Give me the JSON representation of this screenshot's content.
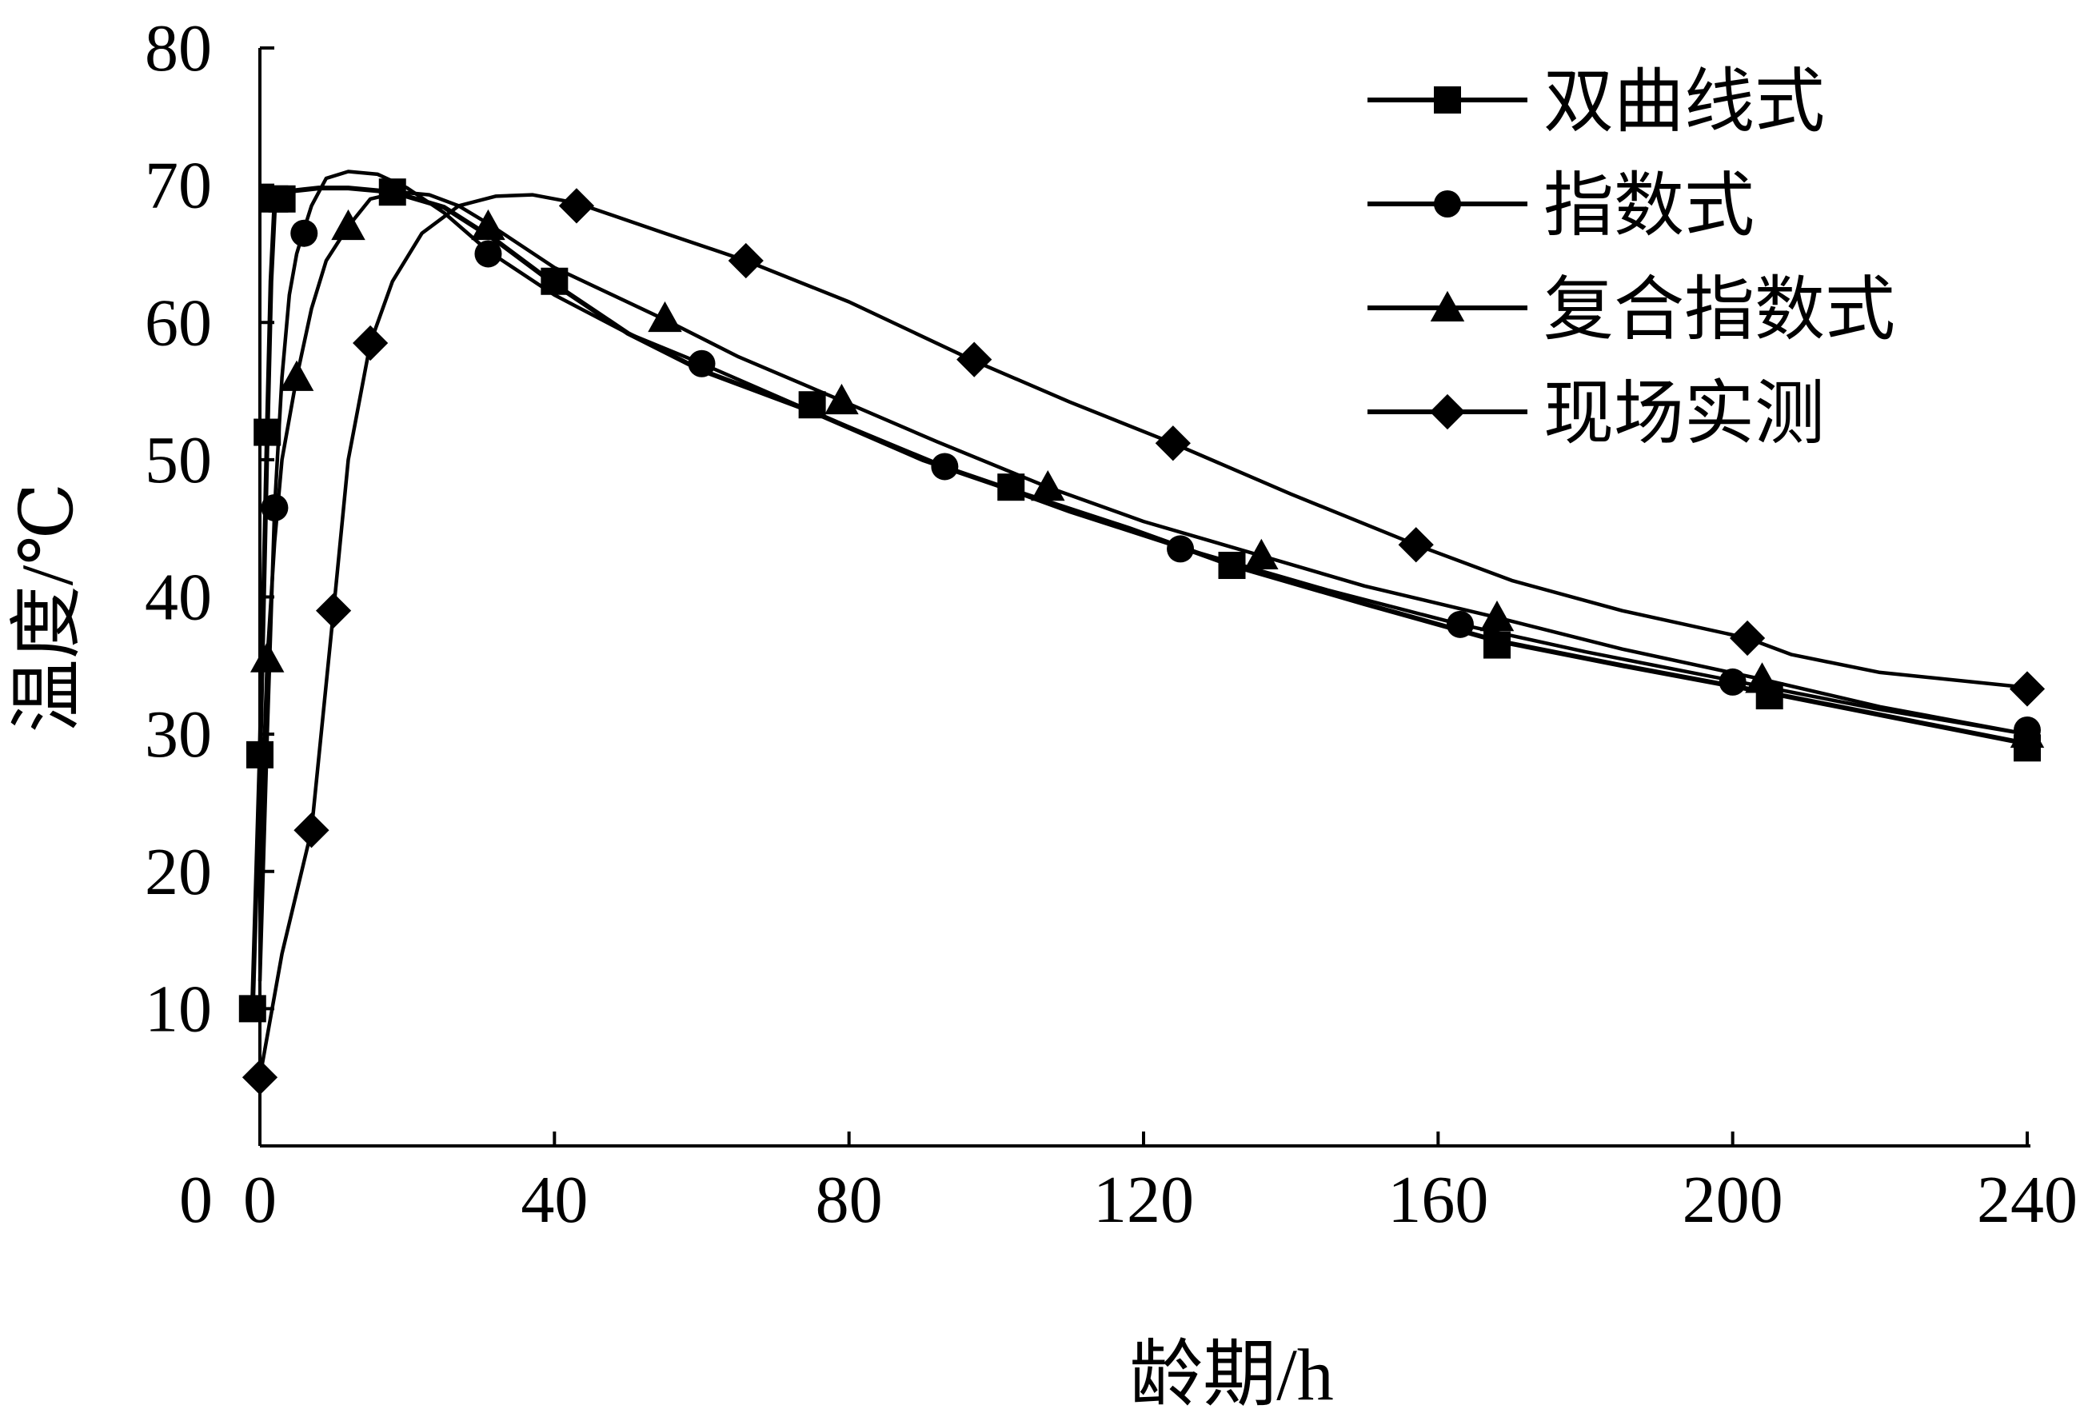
{
  "chart_data": {
    "type": "line",
    "xlabel": "龄期/h",
    "ylabel": "温度/℃",
    "xlim": [
      0,
      240
    ],
    "ylim": [
      0,
      80
    ],
    "xticks": [
      0,
      40,
      80,
      120,
      160,
      200,
      240
    ],
    "yticks": [
      10,
      20,
      30,
      40,
      50,
      60,
      70,
      80
    ],
    "grid": false,
    "legend_position": "top-right",
    "series": [
      {
        "name": "双曲线式",
        "marker": "square",
        "markers": [
          [
            -1,
            10
          ],
          [
            0,
            28.5
          ],
          [
            1,
            52
          ],
          [
            2,
            69
          ],
          [
            3,
            69
          ],
          [
            18,
            69.5
          ],
          [
            40,
            63
          ],
          [
            75,
            54
          ],
          [
            102,
            48
          ],
          [
            132,
            42.3
          ],
          [
            168,
            36.5
          ],
          [
            205,
            32.8
          ],
          [
            240,
            29
          ]
        ],
        "curve": [
          [
            -1,
            10
          ],
          [
            0,
            28
          ],
          [
            1,
            52
          ],
          [
            1.5,
            63
          ],
          [
            2,
            68.5
          ],
          [
            3,
            69.5
          ],
          [
            8,
            69.8
          ],
          [
            12,
            69.8
          ],
          [
            18,
            69.5
          ],
          [
            25,
            68.4
          ],
          [
            32,
            66
          ],
          [
            40,
            62.8
          ],
          [
            50,
            59.2
          ],
          [
            60,
            56.5
          ],
          [
            75,
            53.5
          ],
          [
            90,
            50
          ],
          [
            102,
            47.8
          ],
          [
            118,
            45
          ],
          [
            132,
            42.3
          ],
          [
            150,
            39.5
          ],
          [
            168,
            36.8
          ],
          [
            185,
            35
          ],
          [
            205,
            33
          ],
          [
            222,
            31.2
          ],
          [
            240,
            29.3
          ]
        ]
      },
      {
        "name": "指数式",
        "marker": "circle",
        "markers": [
          [
            2,
            46.5
          ],
          [
            6,
            66.5
          ],
          [
            31,
            65
          ],
          [
            60,
            57
          ],
          [
            93,
            49.5
          ],
          [
            125,
            43.5
          ],
          [
            163,
            38
          ],
          [
            200,
            33.8
          ],
          [
            240,
            30.3
          ]
        ],
        "curve": [
          [
            0,
            12
          ],
          [
            1,
            30
          ],
          [
            2,
            46.5
          ],
          [
            3,
            56
          ],
          [
            4,
            62
          ],
          [
            5,
            65
          ],
          [
            6,
            66.8
          ],
          [
            7,
            68.5
          ],
          [
            9,
            70.5
          ],
          [
            12,
            71
          ],
          [
            16,
            70.8
          ],
          [
            20,
            69.8
          ],
          [
            25,
            68
          ],
          [
            31,
            65.2
          ],
          [
            40,
            62
          ],
          [
            50,
            59.2
          ],
          [
            60,
            57
          ],
          [
            75,
            53.5
          ],
          [
            93,
            49.5
          ],
          [
            110,
            46.2
          ],
          [
            125,
            43.6
          ],
          [
            145,
            40.5
          ],
          [
            163,
            38
          ],
          [
            180,
            36
          ],
          [
            200,
            33.9
          ],
          [
            220,
            31.8
          ],
          [
            240,
            30
          ]
        ]
      },
      {
        "name": "复合指数式",
        "marker": "triangle",
        "markers": [
          [
            1,
            35.5
          ],
          [
            5,
            56
          ],
          [
            12,
            67
          ],
          [
            31,
            67
          ],
          [
            55,
            60.3
          ],
          [
            79,
            54.3
          ],
          [
            107,
            48
          ],
          [
            136,
            43
          ],
          [
            168,
            38.5
          ],
          [
            204,
            34
          ],
          [
            240,
            30
          ]
        ],
        "curve": [
          [
            0,
            20
          ],
          [
            1,
            35.5
          ],
          [
            2,
            44
          ],
          [
            3,
            50
          ],
          [
            5,
            56
          ],
          [
            7,
            61
          ],
          [
            9,
            64.5
          ],
          [
            12,
            67
          ],
          [
            15,
            69
          ],
          [
            19,
            69.5
          ],
          [
            23,
            69.3
          ],
          [
            27,
            68.5
          ],
          [
            31,
            67.2
          ],
          [
            40,
            64
          ],
          [
            55,
            60.2
          ],
          [
            65,
            57.5
          ],
          [
            79,
            54.3
          ],
          [
            92,
            51.3
          ],
          [
            107,
            48
          ],
          [
            120,
            45.5
          ],
          [
            136,
            43
          ],
          [
            150,
            40.8
          ],
          [
            168,
            38.5
          ],
          [
            185,
            36.2
          ],
          [
            204,
            34
          ],
          [
            220,
            32
          ],
          [
            240,
            30
          ]
        ]
      },
      {
        "name": "现场实测",
        "marker": "diamond",
        "markers": [
          [
            0,
            5
          ],
          [
            7,
            23
          ],
          [
            10,
            39
          ],
          [
            15,
            58.5
          ],
          [
            43,
            68.5
          ],
          [
            66,
            64.5
          ],
          [
            97,
            57.3
          ],
          [
            124,
            51.2
          ],
          [
            157,
            43.8
          ],
          [
            202,
            37
          ],
          [
            240,
            33.3
          ]
        ],
        "curve": [
          [
            0,
            5
          ],
          [
            3,
            14
          ],
          [
            7,
            23
          ],
          [
            10,
            39
          ],
          [
            12,
            50
          ],
          [
            15,
            58.5
          ],
          [
            18,
            63
          ],
          [
            22,
            66.5
          ],
          [
            27,
            68.5
          ],
          [
            32,
            69.2
          ],
          [
            37,
            69.3
          ],
          [
            43,
            68.7
          ],
          [
            55,
            66.5
          ],
          [
            66,
            64.5
          ],
          [
            80,
            61.5
          ],
          [
            97,
            57.2
          ],
          [
            110,
            54.2
          ],
          [
            124,
            51.2
          ],
          [
            140,
            47.5
          ],
          [
            157,
            43.8
          ],
          [
            170,
            41.2
          ],
          [
            185,
            39
          ],
          [
            202,
            37
          ],
          [
            208,
            35.8
          ],
          [
            220,
            34.5
          ],
          [
            240,
            33.4
          ]
        ]
      }
    ]
  }
}
